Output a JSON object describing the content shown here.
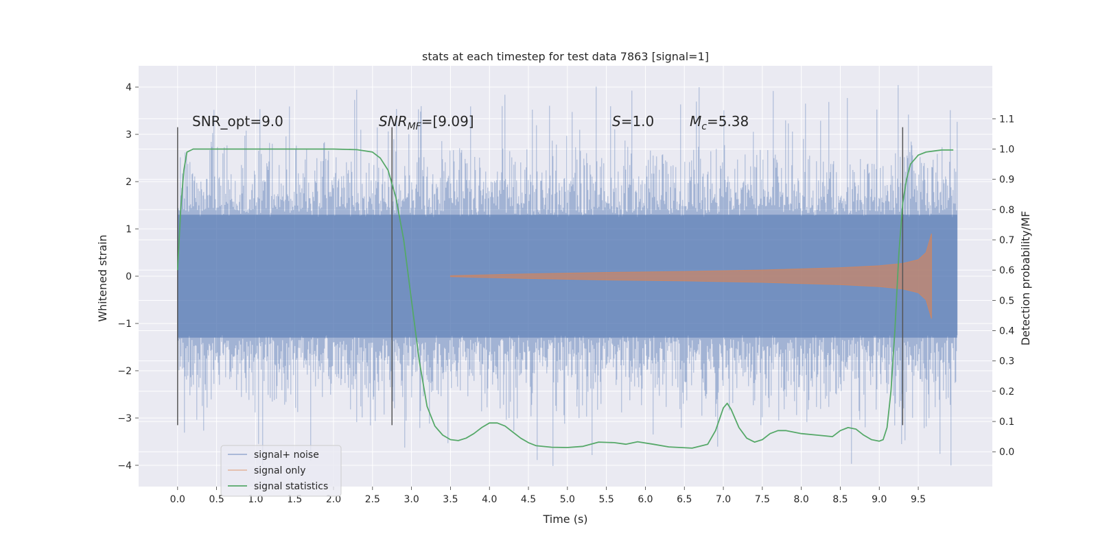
{
  "chart_data": {
    "type": "line",
    "title": "stats at each timestep for test data 7863 [signal=1]",
    "xlabel": "Time (s)",
    "ylabel": "Whitened strain",
    "y2label": "Detection probability/MF",
    "xlim": [
      -0.5,
      10.45
    ],
    "ylim": [
      -4.45,
      4.45
    ],
    "y2lim": [
      -0.115,
      1.275
    ],
    "x_ticks": [
      0.0,
      0.5,
      1.0,
      1.5,
      2.0,
      2.5,
      3.0,
      3.5,
      4.0,
      4.5,
      5.0,
      5.5,
      6.0,
      6.5,
      7.0,
      7.5,
      8.0,
      8.5,
      9.0,
      9.5
    ],
    "x_tick_labels": [
      "0.0",
      "0.5",
      "1.0",
      "1.5",
      "2.0",
      "2.5",
      "3.0",
      "3.5",
      "4.0",
      "4.5",
      "5.0",
      "5.5",
      "6.0",
      "6.5",
      "7.0",
      "7.5",
      "8.0",
      "8.5",
      "9.0",
      "9.5"
    ],
    "y_ticks": [
      -4,
      -3,
      -2,
      -1,
      0,
      1,
      2,
      3,
      4
    ],
    "y_tick_labels": [
      "−4",
      "−3",
      "−2",
      "−1",
      "0",
      "1",
      "2",
      "3",
      "4"
    ],
    "y2_ticks": [
      0.0,
      0.1,
      0.2,
      0.3,
      0.4,
      0.5,
      0.6,
      0.7,
      0.8,
      0.9,
      1.0,
      1.1
    ],
    "y2_tick_labels": [
      "0.0",
      "0.1",
      "0.2",
      "0.3",
      "0.4",
      "0.5",
      "0.6",
      "0.7",
      "0.8",
      "0.9",
      "1.0",
      "1.1"
    ],
    "grid": true,
    "legend_position": "lower-left",
    "series": [
      {
        "name": "signal+ noise",
        "color": "#4c72b0",
        "axis": "left",
        "x_range": [
          0.0,
          10.0
        ],
        "bulk_envelope": [
          -1.3,
          1.3
        ],
        "typical_extremes": [
          -2.8,
          3.3
        ],
        "peak_extremes": [
          -4.05,
          4.05
        ]
      },
      {
        "name": "signal only",
        "color": "#dd8452",
        "axis": "left",
        "x": [
          3.5,
          4.5,
          5.5,
          6.5,
          7.5,
          8.5,
          9.0,
          9.3,
          9.5,
          9.6,
          9.67
        ],
        "envelope": [
          0.01,
          0.05,
          0.08,
          0.1,
          0.13,
          0.18,
          0.22,
          0.27,
          0.35,
          0.5,
          0.9
        ]
      },
      {
        "name": "signal statistics",
        "color": "#55a868",
        "axis": "right",
        "x": [
          0.0,
          0.04,
          0.08,
          0.12,
          0.2,
          0.3,
          0.5,
          1.0,
          1.5,
          2.0,
          2.3,
          2.5,
          2.6,
          2.7,
          2.8,
          2.9,
          3.0,
          3.1,
          3.2,
          3.3,
          3.4,
          3.5,
          3.6,
          3.7,
          3.8,
          3.9,
          4.0,
          4.1,
          4.2,
          4.3,
          4.4,
          4.5,
          4.6,
          4.8,
          5.0,
          5.2,
          5.4,
          5.6,
          5.75,
          5.9,
          6.1,
          6.3,
          6.6,
          6.8,
          6.9,
          7.0,
          7.05,
          7.1,
          7.2,
          7.3,
          7.4,
          7.5,
          7.6,
          7.7,
          7.8,
          7.9,
          8.0,
          8.2,
          8.4,
          8.5,
          8.6,
          8.7,
          8.8,
          8.9,
          9.0,
          9.05,
          9.1,
          9.15,
          9.2,
          9.25,
          9.3,
          9.35,
          9.4,
          9.5,
          9.6,
          9.8,
          9.95
        ],
        "values": [
          0.6,
          0.8,
          0.93,
          0.99,
          1.0,
          1.0,
          1.0,
          1.0,
          1.0,
          1.0,
          0.998,
          0.99,
          0.97,
          0.93,
          0.84,
          0.7,
          0.5,
          0.3,
          0.15,
          0.085,
          0.055,
          0.04,
          0.037,
          0.045,
          0.06,
          0.08,
          0.095,
          0.095,
          0.085,
          0.065,
          0.045,
          0.03,
          0.02,
          0.015,
          0.014,
          0.018,
          0.032,
          0.03,
          0.025,
          0.033,
          0.025,
          0.016,
          0.012,
          0.025,
          0.07,
          0.145,
          0.16,
          0.14,
          0.08,
          0.045,
          0.032,
          0.04,
          0.06,
          0.07,
          0.07,
          0.065,
          0.06,
          0.055,
          0.05,
          0.07,
          0.08,
          0.075,
          0.055,
          0.04,
          0.035,
          0.04,
          0.08,
          0.2,
          0.4,
          0.65,
          0.82,
          0.9,
          0.95,
          0.98,
          0.99,
          0.997,
          0.997
        ]
      }
    ],
    "vlines": [
      {
        "x": 0.0,
        "y": [
          -3.15,
          3.15
        ]
      },
      {
        "x": 2.75,
        "y": [
          -3.15,
          3.15
        ]
      },
      {
        "x": 9.3,
        "y": [
          -3.15,
          3.15
        ]
      }
    ],
    "annotations": [
      {
        "id": "snr_opt",
        "text": "SNR_opt=9.0",
        "x": 0.2,
        "y": 3.15
      },
      {
        "id": "snr_mf",
        "italic": "SNR",
        "sub": "MF",
        "text": "=[9.09]",
        "x": 2.6,
        "y": 3.15
      },
      {
        "id": "s_value",
        "italic": "S",
        "text": "=1.0",
        "x": 5.6,
        "y": 3.15
      },
      {
        "id": "mc_value",
        "italic": "M",
        "sub": "c",
        "text": "=5.38",
        "x": 6.6,
        "y": 3.15
      }
    ]
  }
}
